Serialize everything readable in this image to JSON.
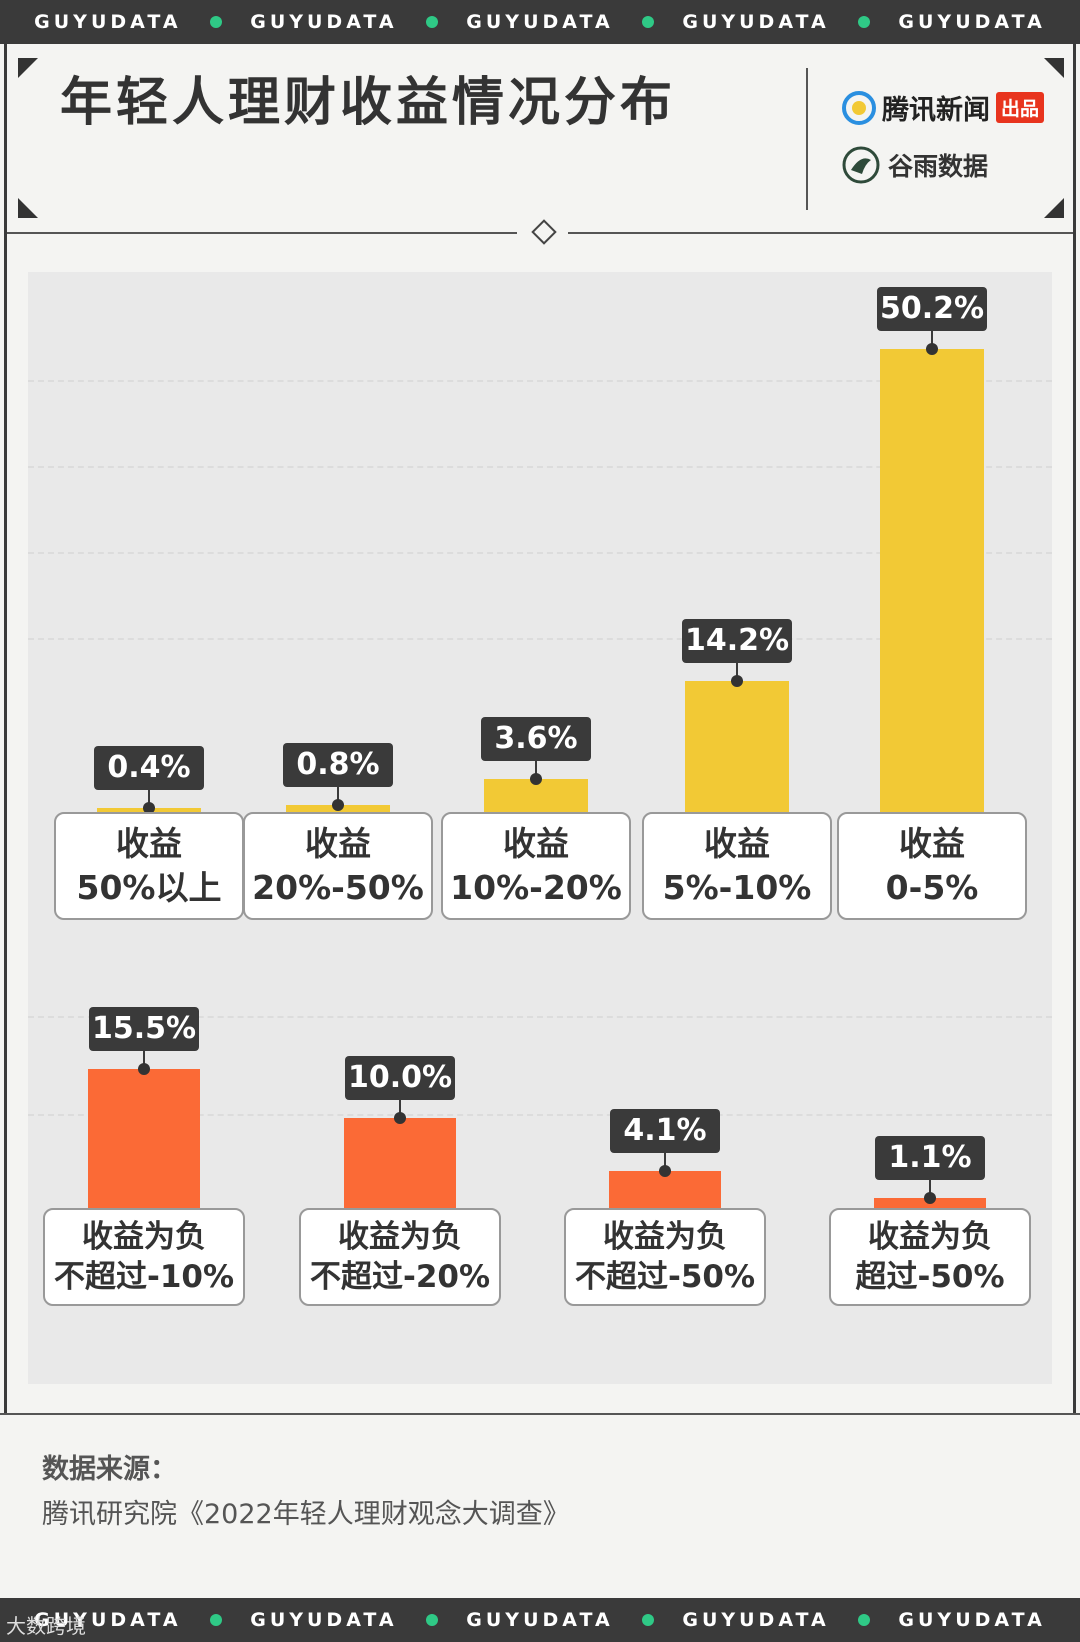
{
  "stripe": {
    "items": [
      "GUYUDATA",
      "GUYUDATA",
      "GUYUDATA",
      "GUYUDATA",
      "GUYUDATA"
    ],
    "dot_color": "#2fc986"
  },
  "header": {
    "title": "年轻人理财收益情况分布",
    "brand1_text": "腾讯新闻",
    "brand1_badge": "出品",
    "brand2_text": "谷雨数据"
  },
  "colors": {
    "positive": "#f2c935",
    "negative": "#fb6a36",
    "label_bg": "#3a3a3a",
    "stripe_bg": "#3a3a3a"
  },
  "chart_data": [
    {
      "type": "bar",
      "categories": [
        "收益\n50%以上",
        "收益\n20%-50%",
        "收益\n10%-20%",
        "收益\n5%-10%",
        "收益\n0-5%"
      ],
      "values": [
        0.4,
        0.8,
        3.6,
        14.2,
        50.2
      ],
      "value_labels": [
        "0.4%",
        "0.8%",
        "3.6%",
        "14.2%",
        "50.2%"
      ]
    },
    {
      "type": "bar",
      "categories": [
        "收益为负\n不超过-10%",
        "收益为负\n不超过-20%",
        "收益为负\n不超过-50%",
        "收益为负\n超过-50%"
      ],
      "values": [
        15.5,
        10.0,
        4.1,
        1.1
      ],
      "value_labels": [
        "15.5%",
        "10.0%",
        "4.1%",
        "1.1%"
      ]
    }
  ],
  "source": {
    "title": "数据来源：",
    "text": "腾讯研究院《2022年轻人理财观念大调查》"
  },
  "watermark": "大数跨境"
}
